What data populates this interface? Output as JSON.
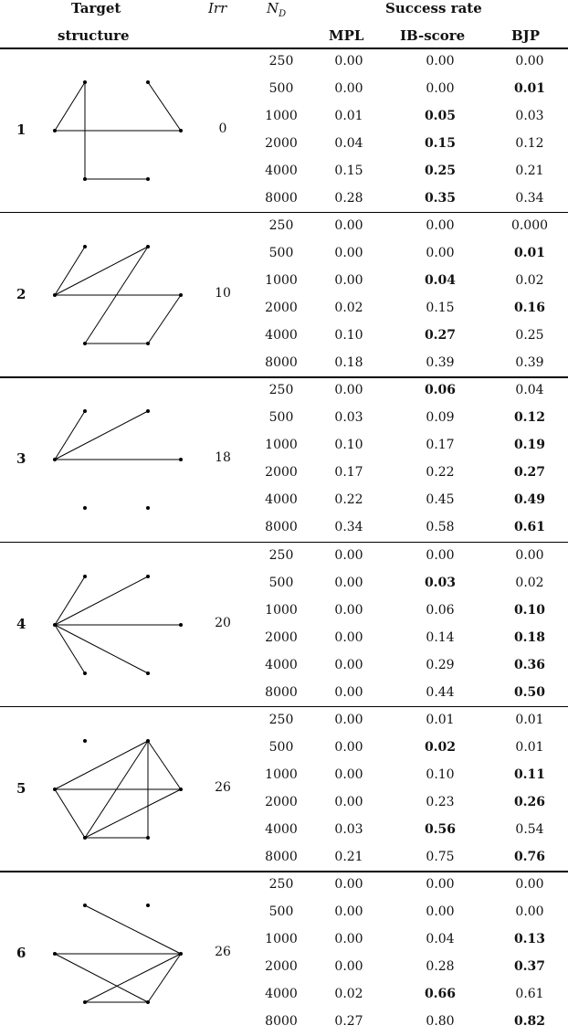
{
  "header": {
    "target_line1": "Target",
    "target_line2": "structure",
    "irr": "Irr",
    "nd_main": "N",
    "nd_sub": "D",
    "success_rate": "Success rate",
    "col_mpl": "MPL",
    "col_ib": "IB-score",
    "col_bjp": "BJP"
  },
  "rows": [
    {
      "label": "1",
      "irr": "0",
      "edges": [
        [
          0,
          1
        ],
        [
          0,
          3
        ],
        [
          1,
          4
        ],
        [
          2,
          3
        ],
        [
          4,
          5
        ]
      ],
      "data": [
        {
          "n": "250",
          "mpl": "0.00",
          "ib": "0.00",
          "bjp": "0.00",
          "bold": ""
        },
        {
          "n": "500",
          "mpl": "0.00",
          "ib": "0.00",
          "bjp": "0.01",
          "bold": "bjp"
        },
        {
          "n": "1000",
          "mpl": "0.01",
          "ib": "0.05",
          "bjp": "0.03",
          "bold": "ib"
        },
        {
          "n": "2000",
          "mpl": "0.04",
          "ib": "0.15",
          "bjp": "0.12",
          "bold": "ib"
        },
        {
          "n": "4000",
          "mpl": "0.15",
          "ib": "0.25",
          "bjp": "0.21",
          "bold": "ib"
        },
        {
          "n": "8000",
          "mpl": "0.28",
          "ib": "0.35",
          "bjp": "0.34",
          "bold": "ib"
        }
      ]
    },
    {
      "label": "2",
      "irr": "10",
      "edges": [
        [
          0,
          1
        ],
        [
          0,
          2
        ],
        [
          0,
          3
        ],
        [
          2,
          4
        ],
        [
          3,
          5
        ],
        [
          4,
          5
        ]
      ],
      "data": [
        {
          "n": "250",
          "mpl": "0.00",
          "ib": "0.00",
          "bjp": "0.000",
          "bold": ""
        },
        {
          "n": "500",
          "mpl": "0.00",
          "ib": "0.00",
          "bjp": "0.01",
          "bold": "bjp"
        },
        {
          "n": "1000",
          "mpl": "0.00",
          "ib": "0.04",
          "bjp": "0.02",
          "bold": "ib"
        },
        {
          "n": "2000",
          "mpl": "0.02",
          "ib": "0.15",
          "bjp": "0.16",
          "bold": "bjp"
        },
        {
          "n": "4000",
          "mpl": "0.10",
          "ib": "0.27",
          "bjp": "0.25",
          "bold": "ib"
        },
        {
          "n": "8000",
          "mpl": "0.18",
          "ib": "0.39",
          "bjp": "0.39",
          "bold": ""
        }
      ]
    },
    {
      "label": "3",
      "irr": "18",
      "edges": [
        [
          0,
          1
        ],
        [
          0,
          2
        ],
        [
          0,
          3
        ]
      ],
      "data": [
        {
          "n": "250",
          "mpl": "0.00",
          "ib": "0.06",
          "bjp": "0.04",
          "bold": "ib"
        },
        {
          "n": "500",
          "mpl": "0.03",
          "ib": "0.09",
          "bjp": "0.12",
          "bold": "bjp"
        },
        {
          "n": "1000",
          "mpl": "0.10",
          "ib": "0.17",
          "bjp": "0.19",
          "bold": "bjp"
        },
        {
          "n": "2000",
          "mpl": "0.17",
          "ib": "0.22",
          "bjp": "0.27",
          "bold": "bjp"
        },
        {
          "n": "4000",
          "mpl": "0.22",
          "ib": "0.45",
          "bjp": "0.49",
          "bold": "bjp"
        },
        {
          "n": "8000",
          "mpl": "0.34",
          "ib": "0.58",
          "bjp": "0.61",
          "bold": "bjp"
        }
      ]
    },
    {
      "label": "4",
      "irr": "20",
      "edges": [
        [
          0,
          1
        ],
        [
          0,
          2
        ],
        [
          0,
          3
        ],
        [
          0,
          4
        ],
        [
          0,
          5
        ]
      ],
      "data": [
        {
          "n": "250",
          "mpl": "0.00",
          "ib": "0.00",
          "bjp": "0.00",
          "bold": ""
        },
        {
          "n": "500",
          "mpl": "0.00",
          "ib": "0.03",
          "bjp": "0.02",
          "bold": "ib"
        },
        {
          "n": "1000",
          "mpl": "0.00",
          "ib": "0.06",
          "bjp": "0.10",
          "bold": "bjp"
        },
        {
          "n": "2000",
          "mpl": "0.00",
          "ib": "0.14",
          "bjp": "0.18",
          "bold": "bjp"
        },
        {
          "n": "4000",
          "mpl": "0.00",
          "ib": "0.29",
          "bjp": "0.36",
          "bold": "bjp"
        },
        {
          "n": "8000",
          "mpl": "0.00",
          "ib": "0.44",
          "bjp": "0.50",
          "bold": "bjp"
        }
      ]
    },
    {
      "label": "5",
      "irr": "26",
      "edges": [
        [
          0,
          2
        ],
        [
          0,
          3
        ],
        [
          0,
          4
        ],
        [
          2,
          3
        ],
        [
          2,
          4
        ],
        [
          2,
          5
        ],
        [
          3,
          4
        ],
        [
          4,
          5
        ]
      ],
      "data": [
        {
          "n": "250",
          "mpl": "0.00",
          "ib": "0.01",
          "bjp": "0.01",
          "bold": ""
        },
        {
          "n": "500",
          "mpl": "0.00",
          "ib": "0.02",
          "bjp": "0.01",
          "bold": "ib"
        },
        {
          "n": "1000",
          "mpl": "0.00",
          "ib": "0.10",
          "bjp": "0.11",
          "bold": "bjp"
        },
        {
          "n": "2000",
          "mpl": "0.00",
          "ib": "0.23",
          "bjp": "0.26",
          "bold": "bjp"
        },
        {
          "n": "4000",
          "mpl": "0.03",
          "ib": "0.56",
          "bjp": "0.54",
          "bold": "ib"
        },
        {
          "n": "8000",
          "mpl": "0.21",
          "ib": "0.75",
          "bjp": "0.76",
          "bold": "bjp"
        }
      ]
    },
    {
      "label": "6",
      "irr": "26",
      "edges": [
        [
          0,
          3
        ],
        [
          0,
          5
        ],
        [
          1,
          3
        ],
        [
          3,
          4
        ],
        [
          3,
          5
        ],
        [
          4,
          5
        ]
      ],
      "data": [
        {
          "n": "250",
          "mpl": "0.00",
          "ib": "0.00",
          "bjp": "0.00",
          "bold": ""
        },
        {
          "n": "500",
          "mpl": "0.00",
          "ib": "0.00",
          "bjp": "0.00",
          "bold": ""
        },
        {
          "n": "1000",
          "mpl": "0.00",
          "ib": "0.04",
          "bjp": "0.13",
          "bold": "bjp"
        },
        {
          "n": "2000",
          "mpl": "0.00",
          "ib": "0.28",
          "bjp": "0.37",
          "bold": "bjp"
        },
        {
          "n": "4000",
          "mpl": "0.02",
          "ib": "0.66",
          "bjp": "0.61",
          "bold": "ib"
        },
        {
          "n": "8000",
          "mpl": "0.27",
          "ib": "0.80",
          "bjp": "0.82",
          "bold": "bjp"
        }
      ]
    }
  ]
}
